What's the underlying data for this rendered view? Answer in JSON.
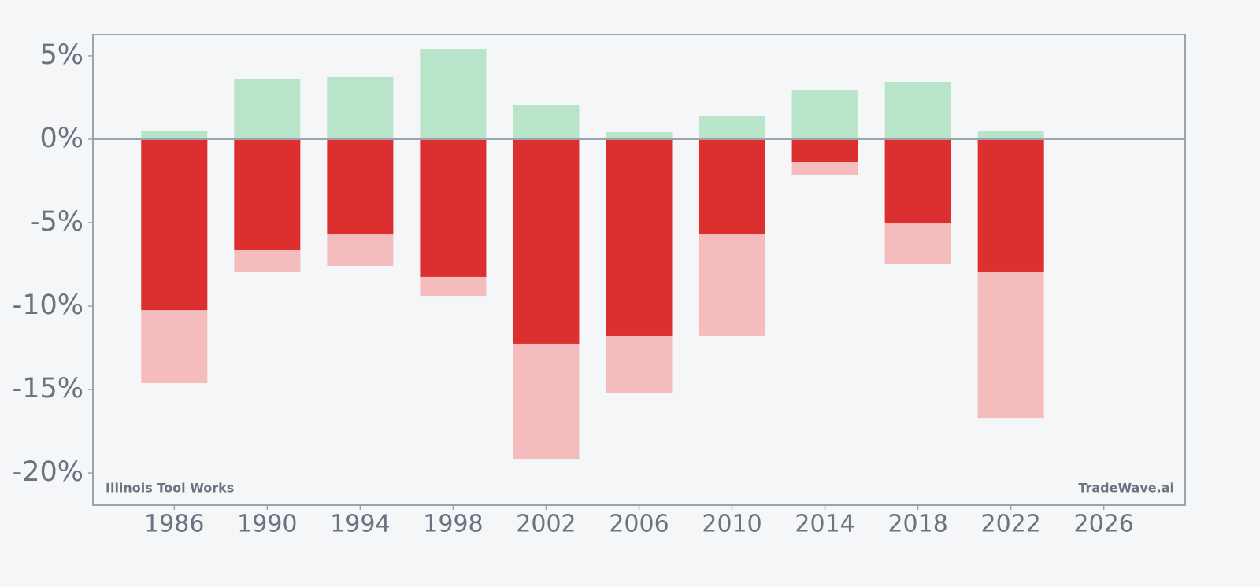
{
  "chart_data": {
    "type": "bar",
    "annotations": [
      "Illinois Tool Works",
      "TradeWave.ai"
    ],
    "x": [
      1986,
      1990,
      1994,
      1998,
      2002,
      2006,
      2010,
      2014,
      2018,
      2022
    ],
    "series": [
      {
        "color": "#b8e4c9",
        "values": [
          0.52,
          3.58,
          3.73,
          5.42,
          2.03,
          0.42,
          1.37,
          2.92,
          3.44,
          0.52
        ]
      },
      {
        "color": "#f4bcbc",
        "values": [
          -14.62,
          -7.97,
          -7.59,
          -9.39,
          -19.15,
          -15.19,
          -11.79,
          -2.17,
          -7.5,
          -16.7
        ]
      },
      {
        "color": "#dc3030",
        "values": [
          -10.24,
          -6.65,
          -5.71,
          -8.25,
          -12.26,
          -11.79,
          -5.71,
          -1.37,
          -5.05,
          -7.97
        ]
      }
    ],
    "xlim": [
      1982.5,
      2029.5
    ],
    "xticks": [
      1986,
      1990,
      1994,
      1998,
      2002,
      2006,
      2010,
      2014,
      2018,
      2022,
      2026
    ],
    "ylim": [
      -21.93,
      6.27
    ],
    "yticks": [
      {
        "value": 5,
        "label": "5%"
      },
      {
        "value": 0,
        "label": "0%"
      },
      {
        "value": -5,
        "label": "-5%"
      },
      {
        "value": -10,
        "label": "-10%"
      },
      {
        "value": -15,
        "label": "-15%"
      },
      {
        "value": -20,
        "label": "-20%"
      }
    ]
  }
}
